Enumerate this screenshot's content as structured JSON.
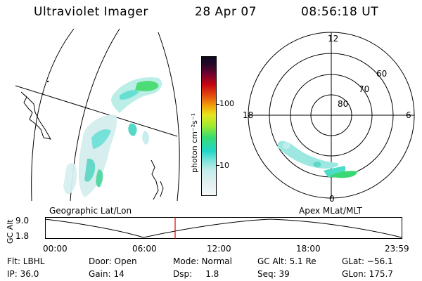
{
  "header": {
    "title": "Ultraviolet Imager",
    "date": "28 Apr 07",
    "time": "08:56:18 UT"
  },
  "colorbar": {
    "unit_label": "photon cm⁻²s⁻¹",
    "ticks": [
      "100",
      "10"
    ],
    "colors": [
      "#e8f4f4",
      "#c8ecec",
      "#6ee0d8",
      "#20d8c8",
      "#40e060",
      "#a0ec30",
      "#e8e820",
      "#f0a010",
      "#e04010",
      "#c00010",
      "#700030",
      "#301030",
      "#101020"
    ]
  },
  "polar": {
    "hour_labels": {
      "top": "12",
      "left": "18",
      "right": "6",
      "bottom": "0"
    },
    "lat_labels": [
      "60",
      "70",
      "80"
    ]
  },
  "bottom_labels": {
    "left": "Geographic Lat/Lon",
    "right": "Apex MLat/MLT"
  },
  "altitude_plot": {
    "ylabel": "GC Alt",
    "y_ticks": [
      "9.0",
      "1.8"
    ],
    "x_ticks": [
      "00:00",
      "06:00",
      "12:00",
      "18:00",
      "23:59"
    ],
    "marker_color": "#e00000"
  },
  "info": {
    "row1": {
      "flt": "Flt: LBHL",
      "door": "Door: Open",
      "mode": "Mode: Normal",
      "gcalt": "GC Alt: 5.1 Re",
      "glat": "GLat: −56.1"
    },
    "row2": {
      "ip": "IP: 36.0",
      "gain": "Gain: 14",
      "dsp": "Dsp:     1.8",
      "seq": "Seq: 39",
      "glon": "GLon: 175.7"
    }
  }
}
